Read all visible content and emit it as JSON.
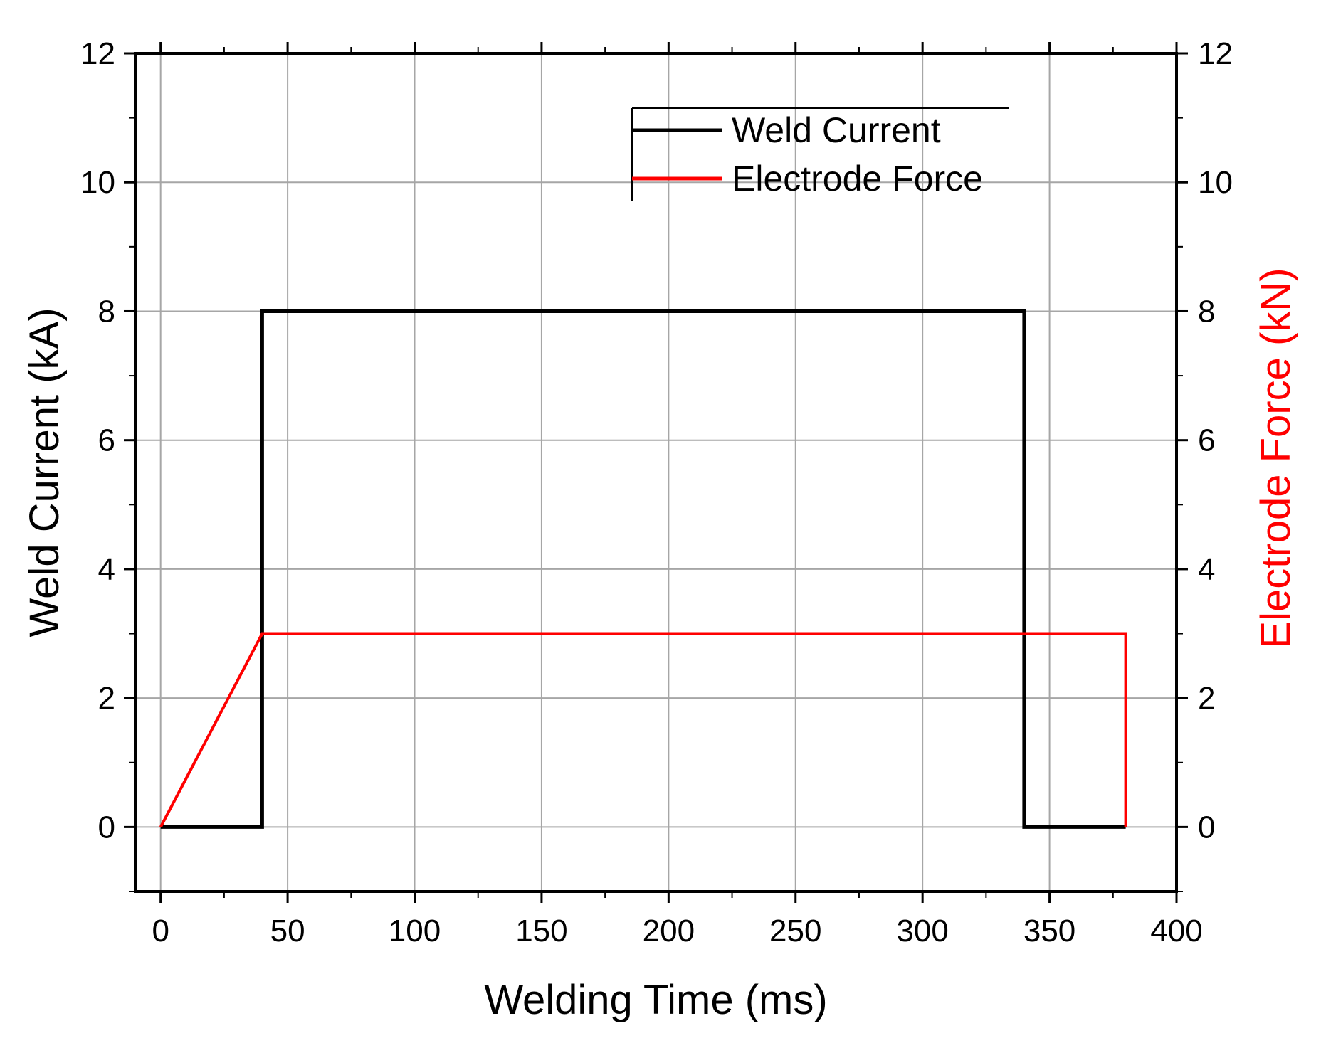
{
  "chart_data": {
    "type": "line",
    "title": "",
    "xlabel": "Welding Time (ms)",
    "ylabel": "Weld Current (kA)",
    "y2label": "Electrode Force (kN)",
    "xlim": [
      -10,
      400
    ],
    "ylim": [
      -1,
      12
    ],
    "y2lim": [
      -1,
      12
    ],
    "xticks": [
      0,
      50,
      100,
      150,
      200,
      250,
      300,
      350,
      400
    ],
    "yticks": [
      0,
      2,
      4,
      6,
      8,
      10,
      12
    ],
    "y2ticks": [
      0,
      2,
      4,
      6,
      8,
      10,
      12
    ],
    "grid": true,
    "legend_position": "top-right",
    "series": [
      {
        "name": "Weld Current",
        "axis": "left",
        "color": "#000000",
        "x": [
          0,
          40,
          40,
          340,
          340,
          380
        ],
        "y": [
          0,
          0,
          8,
          8,
          0,
          0
        ]
      },
      {
        "name": "Electrode Force",
        "axis": "right",
        "color": "#ff0000",
        "x": [
          0,
          40,
          380,
          380
        ],
        "y": [
          0,
          3,
          3,
          0
        ]
      }
    ]
  }
}
